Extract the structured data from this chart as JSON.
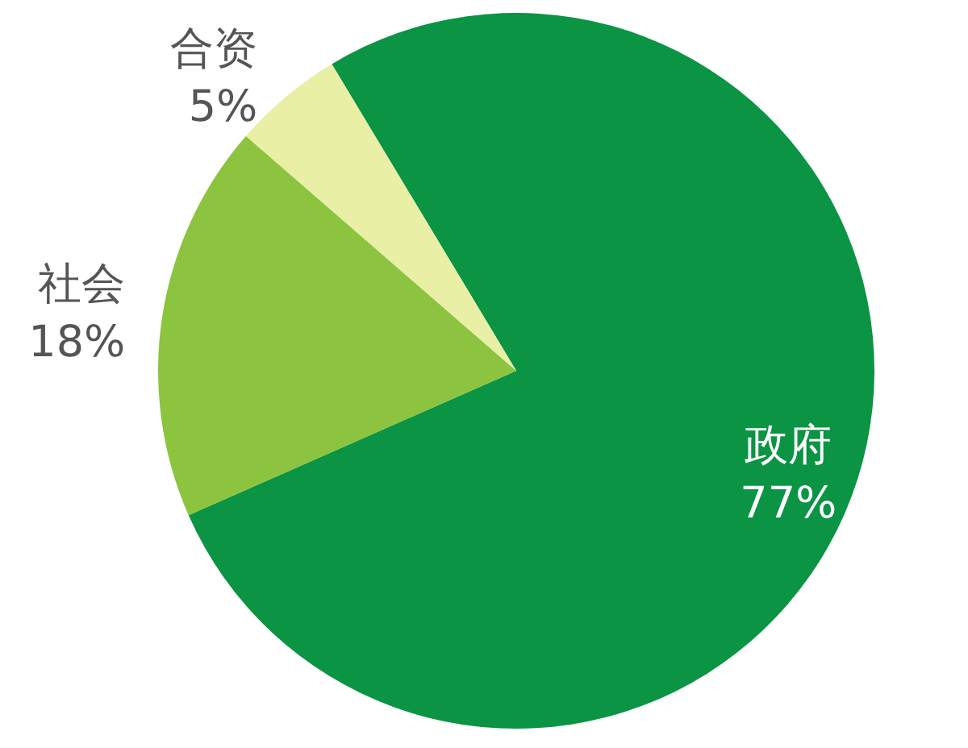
{
  "chart_data": {
    "type": "pie",
    "categories": [
      "政府",
      "社会",
      "合资"
    ],
    "values": [
      77,
      18,
      5
    ],
    "value_labels": [
      "77%",
      "18%",
      "5%"
    ],
    "colors": [
      "#0a9444",
      "#8cc43f",
      "#e9f0a6"
    ],
    "legend": false
  }
}
